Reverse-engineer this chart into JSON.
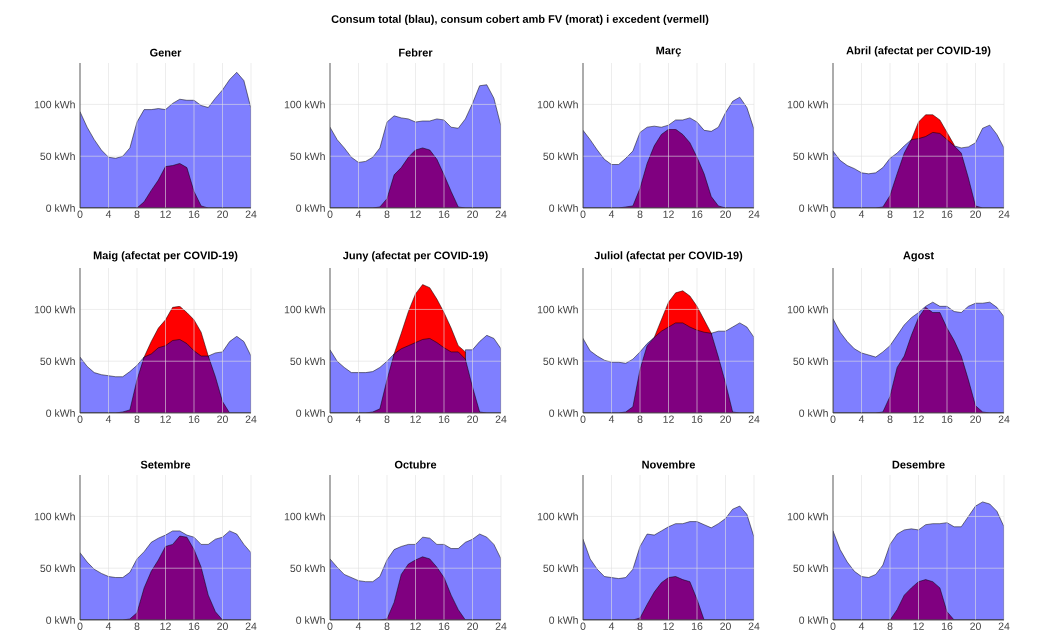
{
  "chart_data": [
    {
      "type": "area",
      "title": "Gener",
      "annotations": [
        "Consum total (blau), consum cobert amb FV (morat) i excedent (vermell)"
      ],
      "x": [
        0,
        1,
        2,
        3,
        4,
        5,
        6,
        7,
        8,
        9,
        10,
        11,
        12,
        13,
        14,
        15,
        16,
        17,
        18,
        19,
        20,
        21,
        22,
        23,
        24
      ],
      "xlim": [
        0,
        24
      ],
      "xticks": [
        0,
        4,
        8,
        12,
        16,
        20,
        24
      ],
      "ylim": [
        0,
        140
      ],
      "yticks": [
        {
          "value": 0,
          "label": "0 kWh"
        },
        {
          "value": 50,
          "label": "50 kWh"
        },
        {
          "value": 100,
          "label": "100 kWh"
        }
      ],
      "grid": true,
      "series": [
        {
          "color": "#7f7fff",
          "values": [
            93,
            78,
            66,
            56,
            49,
            48,
            50,
            58,
            83,
            95,
            95,
            96,
            95,
            101,
            105,
            104,
            104,
            99,
            97,
            106,
            114,
            124,
            131,
            123,
            96
          ]
        },
        {
          "color": "#800080",
          "values": [
            0,
            0,
            0,
            0,
            0,
            0,
            0,
            0,
            0,
            6,
            17,
            27,
            40,
            41,
            43,
            39,
            16,
            2,
            0,
            0,
            0,
            0,
            0,
            0,
            0
          ]
        }
      ]
    },
    {
      "type": "area",
      "title": "Febrer",
      "x": [
        0,
        1,
        2,
        3,
        4,
        5,
        6,
        7,
        8,
        9,
        10,
        11,
        12,
        13,
        14,
        15,
        16,
        17,
        18,
        19,
        20,
        21,
        22,
        23,
        24
      ],
      "xlim": [
        0,
        24
      ],
      "xticks": [
        0,
        4,
        8,
        12,
        16,
        20,
        24
      ],
      "ylim": [
        0,
        140
      ],
      "yticks": [
        {
          "value": 0,
          "label": "0 kWh"
        },
        {
          "value": 50,
          "label": "50 kWh"
        },
        {
          "value": 100,
          "label": "100 kWh"
        }
      ],
      "grid": true,
      "series": [
        {
          "color": "#7f7fff",
          "values": [
            78,
            66,
            58,
            49,
            44,
            45,
            49,
            58,
            83,
            89,
            87,
            86,
            83,
            84,
            84,
            86,
            85,
            78,
            77,
            86,
            101,
            118,
            119,
            106,
            79
          ]
        },
        {
          "color": "#800080",
          "values": [
            0,
            0,
            0,
            0,
            0,
            0,
            0,
            1,
            9,
            32,
            39,
            49,
            56,
            58,
            56,
            47,
            32,
            16,
            1,
            0,
            0,
            0,
            0,
            0,
            0
          ]
        }
      ]
    },
    {
      "type": "area",
      "title": "Març",
      "x": [
        0,
        1,
        2,
        3,
        4,
        5,
        6,
        7,
        8,
        9,
        10,
        11,
        12,
        13,
        14,
        15,
        16,
        17,
        18,
        19,
        20,
        21,
        22,
        23,
        24
      ],
      "xlim": [
        0,
        24
      ],
      "xticks": [
        0,
        4,
        8,
        12,
        16,
        20,
        24
      ],
      "ylim": [
        0,
        140
      ],
      "yticks": [
        {
          "value": 0,
          "label": "0 kWh"
        },
        {
          "value": 50,
          "label": "50 kWh"
        },
        {
          "value": 100,
          "label": "100 kWh"
        }
      ],
      "grid": true,
      "series": [
        {
          "color": "#7f7fff",
          "values": [
            75,
            66,
            56,
            47,
            42,
            42,
            48,
            55,
            73,
            78,
            79,
            78,
            80,
            85,
            85,
            87,
            83,
            75,
            74,
            78,
            92,
            103,
            107,
            97,
            76
          ]
        },
        {
          "color": "#800080",
          "values": [
            0,
            0,
            0,
            0,
            0,
            0,
            1,
            2,
            19,
            43,
            60,
            71,
            76,
            76,
            71,
            63,
            49,
            33,
            11,
            2,
            0,
            0,
            0,
            0,
            0
          ]
        }
      ]
    },
    {
      "type": "area",
      "title": "Abril (afectat per COVID-19)",
      "x": [
        0,
        1,
        2,
        3,
        4,
        5,
        6,
        7,
        8,
        9,
        10,
        11,
        12,
        13,
        14,
        15,
        16,
        17,
        18,
        19,
        20,
        21,
        22,
        23,
        24
      ],
      "xlim": [
        0,
        24
      ],
      "xticks": [
        0,
        4,
        8,
        12,
        16,
        20,
        24
      ],
      "ylim": [
        0,
        140
      ],
      "yticks": [
        {
          "value": 0,
          "label": "0 kWh"
        },
        {
          "value": 50,
          "label": "50 kWh"
        },
        {
          "value": 100,
          "label": "100 kWh"
        }
      ],
      "grid": true,
      "series": [
        {
          "color": "#7f7fff",
          "values": [
            55,
            46,
            41,
            38,
            34,
            33,
            34,
            39,
            48,
            53,
            60,
            66,
            null,
            null,
            null,
            null,
            null,
            60,
            58,
            59,
            63,
            77,
            80,
            71,
            58
          ]
        },
        {
          "color": "#ff0000",
          "values": [
            null,
            null,
            null,
            null,
            null,
            null,
            null,
            null,
            null,
            null,
            null,
            66,
            83,
            90,
            90,
            85,
            73,
            61,
            null,
            null,
            null,
            null,
            null,
            null,
            null
          ]
        },
        {
          "color": "#800080",
          "values": [
            0,
            0,
            0,
            0,
            0,
            0,
            0,
            1,
            12,
            33,
            53,
            66,
            67,
            69,
            73,
            72,
            66,
            60,
            53,
            29,
            2,
            0,
            0,
            0,
            0
          ]
        }
      ]
    },
    {
      "type": "area",
      "title": "Maig (afectat per COVID-19)",
      "x": [
        0,
        1,
        2,
        3,
        4,
        5,
        6,
        7,
        8,
        9,
        10,
        11,
        12,
        13,
        14,
        15,
        16,
        17,
        18,
        19,
        20,
        21,
        22,
        23,
        24
      ],
      "xlim": [
        0,
        24
      ],
      "xticks": [
        0,
        4,
        8,
        12,
        16,
        20,
        24
      ],
      "ylim": [
        0,
        140
      ],
      "yticks": [
        {
          "value": 0,
          "label": "0 kWh"
        },
        {
          "value": 50,
          "label": "50 kWh"
        },
        {
          "value": 100,
          "label": "100 kWh"
        }
      ],
      "grid": true,
      "series": [
        {
          "color": "#7f7fff",
          "values": [
            54,
            45,
            39,
            37,
            36,
            35,
            35,
            40,
            46,
            54,
            null,
            null,
            null,
            null,
            null,
            null,
            null,
            null,
            55,
            58,
            59,
            69,
            74,
            69,
            55
          ]
        },
        {
          "color": "#ff0000",
          "values": [
            null,
            null,
            null,
            null,
            null,
            null,
            null,
            null,
            null,
            54,
            69,
            82,
            90,
            102,
            103,
            97,
            90,
            78,
            55,
            null,
            null,
            null,
            null,
            null,
            null
          ]
        },
        {
          "color": "#800080",
          "values": [
            0,
            0,
            0,
            0,
            0,
            0,
            1,
            3,
            32,
            54,
            57,
            63,
            65,
            70,
            71,
            67,
            60,
            55,
            55,
            35,
            11,
            0,
            0,
            0,
            0
          ]
        }
      ]
    },
    {
      "type": "area",
      "title": "Juny (afectat per COVID-19)",
      "x": [
        0,
        1,
        2,
        3,
        4,
        5,
        6,
        7,
        8,
        9,
        10,
        11,
        12,
        13,
        14,
        15,
        16,
        17,
        18,
        19,
        20,
        21,
        22,
        23,
        24
      ],
      "xlim": [
        0,
        24
      ],
      "xticks": [
        0,
        4,
        8,
        12,
        16,
        20,
        24
      ],
      "ylim": [
        0,
        140
      ],
      "yticks": [
        {
          "value": 0,
          "label": "0 kWh"
        },
        {
          "value": 50,
          "label": "50 kWh"
        },
        {
          "value": 100,
          "label": "100 kWh"
        }
      ],
      "grid": true,
      "series": [
        {
          "color": "#7f7fff",
          "values": [
            61,
            50,
            44,
            39,
            39,
            39,
            40,
            44,
            50,
            57,
            null,
            null,
            null,
            null,
            null,
            null,
            null,
            null,
            null,
            61,
            61,
            69,
            75,
            72,
            62
          ]
        },
        {
          "color": "#ff0000",
          "values": [
            null,
            null,
            null,
            null,
            null,
            null,
            null,
            null,
            null,
            57,
            77,
            98,
            115,
            124,
            121,
            110,
            97,
            82,
            65,
            59,
            null,
            null,
            null,
            null,
            null
          ]
        },
        {
          "color": "#800080",
          "values": [
            0,
            0,
            0,
            0,
            0,
            0,
            1,
            4,
            32,
            57,
            62,
            65,
            68,
            71,
            72,
            68,
            63,
            59,
            59,
            52,
            25,
            1,
            0,
            0,
            0
          ]
        }
      ]
    },
    {
      "type": "area",
      "title": "Juliol (afectat per COVID-19)",
      "x": [
        0,
        1,
        2,
        3,
        4,
        5,
        6,
        7,
        8,
        9,
        10,
        11,
        12,
        13,
        14,
        15,
        16,
        17,
        18,
        19,
        20,
        21,
        22,
        23,
        24
      ],
      "xlim": [
        0,
        24
      ],
      "xticks": [
        0,
        4,
        8,
        12,
        16,
        20,
        24
      ],
      "ylim": [
        0,
        140
      ],
      "yticks": [
        {
          "value": 0,
          "label": "0 kWh"
        },
        {
          "value": 50,
          "label": "50 kWh"
        },
        {
          "value": 100,
          "label": "100 kWh"
        }
      ],
      "grid": true,
      "series": [
        {
          "color": "#7f7fff",
          "values": [
            72,
            60,
            55,
            51,
            49,
            49,
            48,
            52,
            59,
            67,
            73,
            null,
            null,
            null,
            null,
            null,
            null,
            null,
            77,
            79,
            79,
            83,
            87,
            83,
            73
          ]
        },
        {
          "color": "#ff0000",
          "values": [
            null,
            null,
            null,
            null,
            null,
            null,
            null,
            null,
            null,
            null,
            73,
            90,
            107,
            116,
            118,
            113,
            103,
            90,
            77,
            null,
            null,
            null,
            null,
            null,
            null
          ]
        },
        {
          "color": "#800080",
          "values": [
            0,
            0,
            0,
            0,
            0,
            0,
            1,
            6,
            42,
            65,
            73,
            79,
            83,
            87,
            87,
            83,
            80,
            78,
            77,
            54,
            29,
            1,
            0,
            0,
            0
          ]
        }
      ]
    },
    {
      "type": "area",
      "title": "Agost",
      "x": [
        0,
        1,
        2,
        3,
        4,
        5,
        6,
        7,
        8,
        9,
        10,
        11,
        12,
        13,
        14,
        15,
        16,
        17,
        18,
        19,
        20,
        21,
        22,
        23,
        24
      ],
      "xlim": [
        0,
        24
      ],
      "xticks": [
        0,
        4,
        8,
        12,
        16,
        20,
        24
      ],
      "ylim": [
        0,
        140
      ],
      "yticks": [
        {
          "value": 0,
          "label": "0 kWh"
        },
        {
          "value": 50,
          "label": "50 kWh"
        },
        {
          "value": 100,
          "label": "100 kWh"
        }
      ],
      "grid": true,
      "series": [
        {
          "color": "#7f7fff",
          "values": [
            91,
            78,
            69,
            62,
            58,
            56,
            54,
            59,
            65,
            75,
            85,
            92,
            97,
            103,
            107,
            103,
            103,
            98,
            97,
            103,
            106,
            106,
            107,
            102,
            93
          ]
        },
        {
          "color": "#800080",
          "values": [
            0,
            0,
            0,
            0,
            0,
            0,
            0,
            1,
            16,
            44,
            55,
            75,
            92,
            102,
            97,
            97,
            82,
            70,
            55,
            32,
            7,
            1,
            0,
            0,
            0
          ]
        }
      ]
    },
    {
      "type": "area",
      "title": "Setembre",
      "x": [
        0,
        1,
        2,
        3,
        4,
        5,
        6,
        7,
        8,
        9,
        10,
        11,
        12,
        13,
        14,
        15,
        16,
        17,
        18,
        19,
        20,
        21,
        22,
        23,
        24
      ],
      "xlim": [
        0,
        24
      ],
      "xticks": [
        0,
        4,
        8,
        12,
        16,
        20,
        24
      ],
      "ylim": [
        0,
        140
      ],
      "yticks": [
        {
          "value": 0,
          "label": "0 kWh"
        },
        {
          "value": 50,
          "label": "50 kWh"
        },
        {
          "value": 100,
          "label": "100 kWh"
        }
      ],
      "grid": true,
      "series": [
        {
          "color": "#7f7fff",
          "values": [
            65,
            56,
            49,
            45,
            42,
            41,
            41,
            46,
            59,
            66,
            75,
            79,
            82,
            86,
            86,
            82,
            80,
            73,
            73,
            78,
            80,
            86,
            83,
            73,
            65
          ]
        },
        {
          "color": "#800080",
          "values": [
            0,
            0,
            0,
            0,
            0,
            0,
            0,
            1,
            7,
            31,
            47,
            58,
            71,
            73,
            81,
            80,
            68,
            51,
            24,
            8,
            0,
            0,
            0,
            0,
            0
          ]
        }
      ]
    },
    {
      "type": "area",
      "title": "Octubre",
      "x": [
        0,
        1,
        2,
        3,
        4,
        5,
        6,
        7,
        8,
        9,
        10,
        11,
        12,
        13,
        14,
        15,
        16,
        17,
        18,
        19,
        20,
        21,
        22,
        23,
        24
      ],
      "xlim": [
        0,
        24
      ],
      "xticks": [
        0,
        4,
        8,
        12,
        16,
        20,
        24
      ],
      "ylim": [
        0,
        140
      ],
      "yticks": [
        {
          "value": 0,
          "label": "0 kWh"
        },
        {
          "value": 50,
          "label": "50 kWh"
        },
        {
          "value": 100,
          "label": "100 kWh"
        }
      ],
      "grid": true,
      "series": [
        {
          "color": "#7f7fff",
          "values": [
            59,
            51,
            44,
            41,
            38,
            37,
            37,
            42,
            58,
            68,
            71,
            73,
            73,
            80,
            79,
            73,
            73,
            69,
            69,
            75,
            78,
            83,
            80,
            73,
            59
          ]
        },
        {
          "color": "#800080",
          "values": [
            0,
            0,
            0,
            0,
            0,
            0,
            0,
            0,
            1,
            17,
            44,
            54,
            58,
            61,
            59,
            51,
            41,
            24,
            10,
            0,
            0,
            0,
            0,
            0,
            0
          ]
        }
      ]
    },
    {
      "type": "area",
      "title": "Novembre",
      "x": [
        0,
        1,
        2,
        3,
        4,
        5,
        6,
        7,
        8,
        9,
        10,
        11,
        12,
        13,
        14,
        15,
        16,
        17,
        18,
        19,
        20,
        21,
        22,
        23,
        24
      ],
      "xlim": [
        0,
        24
      ],
      "xticks": [
        0,
        4,
        8,
        12,
        16,
        20,
        24
      ],
      "ylim": [
        0,
        140
      ],
      "yticks": [
        {
          "value": 0,
          "label": "0 kWh"
        },
        {
          "value": 50,
          "label": "50 kWh"
        },
        {
          "value": 100,
          "label": "100 kWh"
        }
      ],
      "grid": true,
      "series": [
        {
          "color": "#7f7fff",
          "values": [
            78,
            59,
            49,
            42,
            41,
            40,
            41,
            49,
            71,
            83,
            82,
            86,
            90,
            93,
            93,
            95,
            95,
            92,
            89,
            93,
            98,
            107,
            110,
            102,
            80
          ]
        },
        {
          "color": "#800080",
          "values": [
            0,
            0,
            0,
            0,
            0,
            0,
            0,
            0,
            2,
            15,
            27,
            36,
            41,
            42,
            39,
            37,
            20,
            0,
            0,
            0,
            0,
            0,
            0,
            0,
            0
          ]
        }
      ]
    },
    {
      "type": "area",
      "title": "Desembre",
      "x": [
        0,
        1,
        2,
        3,
        4,
        5,
        6,
        7,
        8,
        9,
        10,
        11,
        12,
        13,
        14,
        15,
        16,
        17,
        18,
        19,
        20,
        21,
        22,
        23,
        24
      ],
      "xlim": [
        0,
        24
      ],
      "xticks": [
        0,
        4,
        8,
        12,
        16,
        20,
        24
      ],
      "ylim": [
        0,
        140
      ],
      "yticks": [
        {
          "value": 0,
          "label": "0 kWh"
        },
        {
          "value": 50,
          "label": "50 kWh"
        },
        {
          "value": 100,
          "label": "100 kWh"
        }
      ],
      "grid": true,
      "series": [
        {
          "color": "#7f7fff",
          "values": [
            86,
            68,
            56,
            47,
            42,
            41,
            44,
            53,
            73,
            83,
            87,
            88,
            87,
            92,
            93,
            93,
            94,
            90,
            90,
            100,
            110,
            114,
            112,
            105,
            90
          ]
        },
        {
          "color": "#800080",
          "values": [
            0,
            0,
            0,
            0,
            0,
            0,
            0,
            0,
            0,
            10,
            24,
            31,
            37,
            39,
            37,
            31,
            8,
            0,
            0,
            0,
            0,
            0,
            0,
            0,
            0
          ]
        }
      ]
    }
  ]
}
